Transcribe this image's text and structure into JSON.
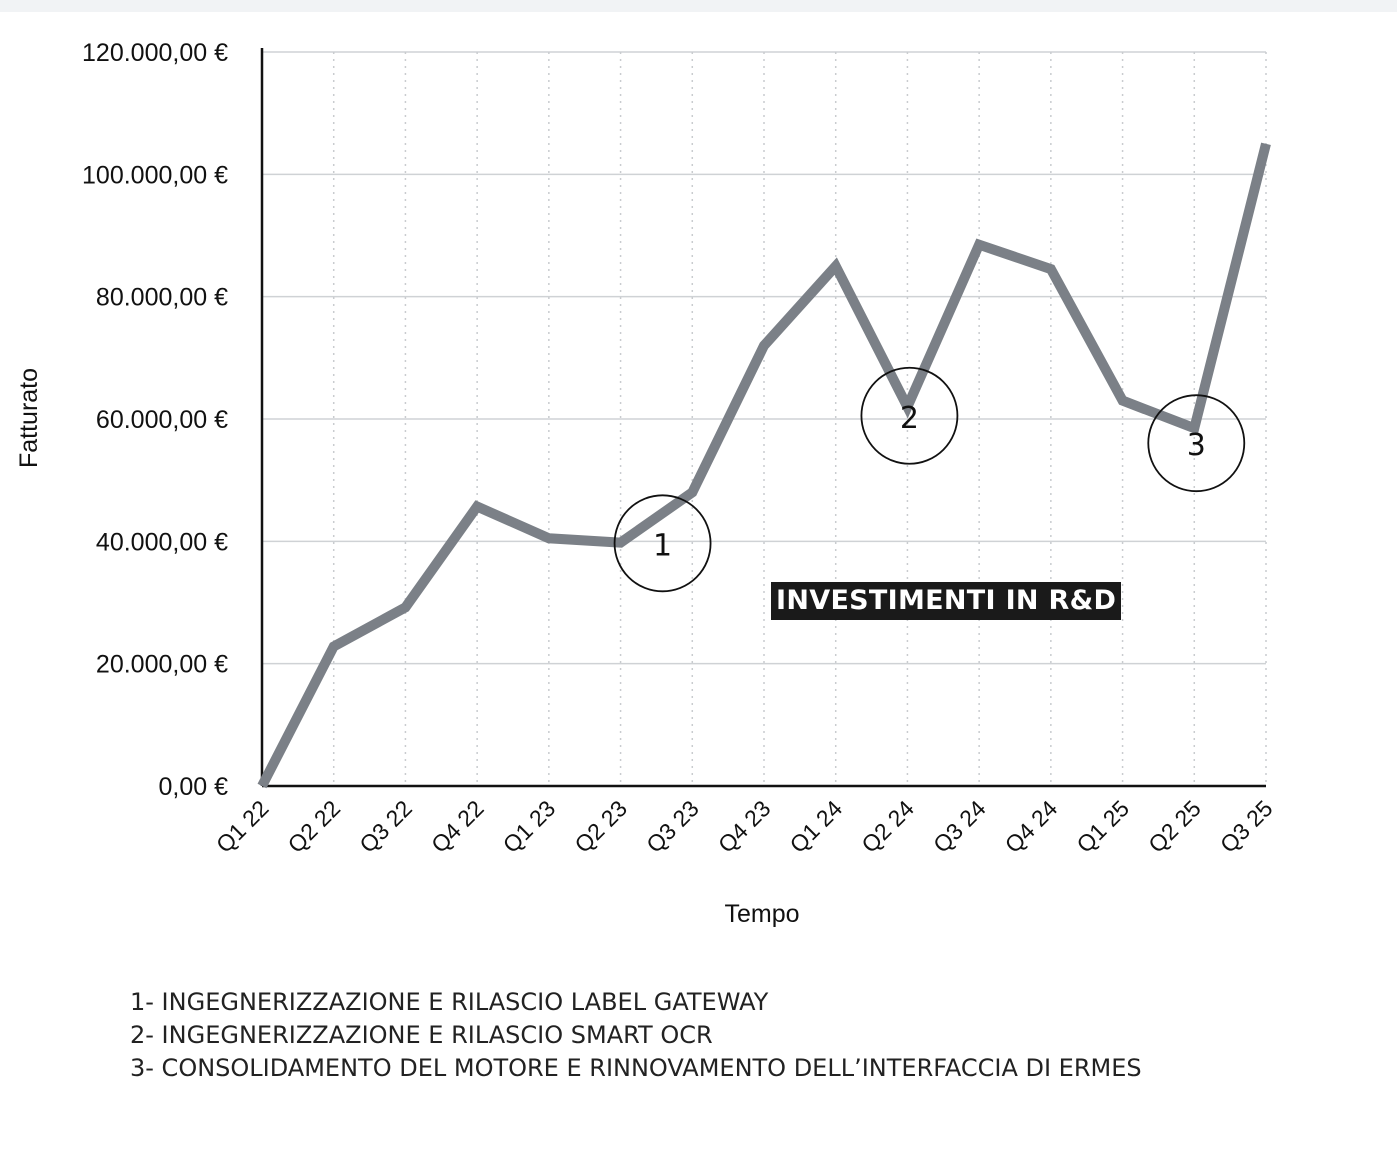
{
  "chart_data": {
    "type": "line",
    "categories": [
      "Q1 22",
      "Q2 22",
      "Q3 22",
      "Q4 22",
      "Q1 23",
      "Q2 23",
      "Q3 23",
      "Q4 23",
      "Q1 24",
      "Q2 24",
      "Q3 24",
      "Q4 24",
      "Q1 25",
      "Q2 25",
      "Q3 25"
    ],
    "series": [
      {
        "values": [
          0,
          22800,
          29200,
          45700,
          40500,
          39800,
          48000,
          72000,
          85000,
          62000,
          88500,
          84500,
          63000,
          58500,
          105000
        ]
      }
    ],
    "xlabel": "Tempo",
    "ylabel": "Fatturato",
    "ylim": [
      0,
      120000
    ],
    "yticks": [
      0,
      20000,
      40000,
      60000,
      80000,
      100000,
      120000
    ],
    "ytick_labels": [
      "0,00 €",
      "20.000,00 €",
      "40.000,00 €",
      "60.000,00 €",
      "80.000,00 €",
      "100.000,00 €",
      "120.000,00 €"
    ],
    "grid": true,
    "line_color": "#7b8087",
    "annotations": [
      {
        "label": "1",
        "category": "Q2 23",
        "value": 40000
      },
      {
        "label": "2",
        "category": "Q2 24",
        "value": 62000
      },
      {
        "label": "3",
        "category": "Q2 25",
        "value": 58500
      }
    ],
    "badge": "INVESTIMENTI IN R&D"
  },
  "notes": [
    "1- INGEGNERIZZAZIONE E RILASCIO LABEL GATEWAY",
    "2- INGEGNERIZZAZIONE E RILASCIO SMART OCR",
    "3- CONSOLIDAMENTO DEL MOTORE E RINNOVAMENTO DELL’INTERFACCIA DI ERMES"
  ]
}
